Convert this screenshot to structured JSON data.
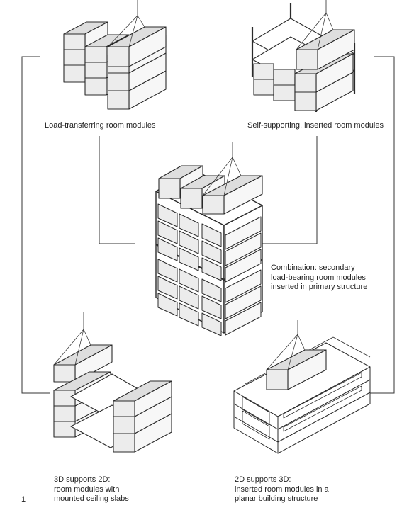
{
  "captions": {
    "load_transferring": "Load-transferring room modules",
    "self_supporting": "Self-supporting, inserted room modules",
    "combination": [
      "Combination: secondary",
      "load-bearing room modules",
      "inserted in primary structure"
    ],
    "supports_3d_2d": [
      "3D supports 2D:",
      "room modules with",
      "mounted ceiling slabs"
    ],
    "supports_2d_3d": [
      "2D supports 3D:",
      "inserted room modules in a",
      "planar building structure"
    ]
  },
  "figure_number": "1",
  "colors": {
    "module_top": "#dedede",
    "module_front": "#ececec",
    "module_side": "#f7f7f7",
    "stroke": "#2a2a2a",
    "connector": "#333333"
  }
}
